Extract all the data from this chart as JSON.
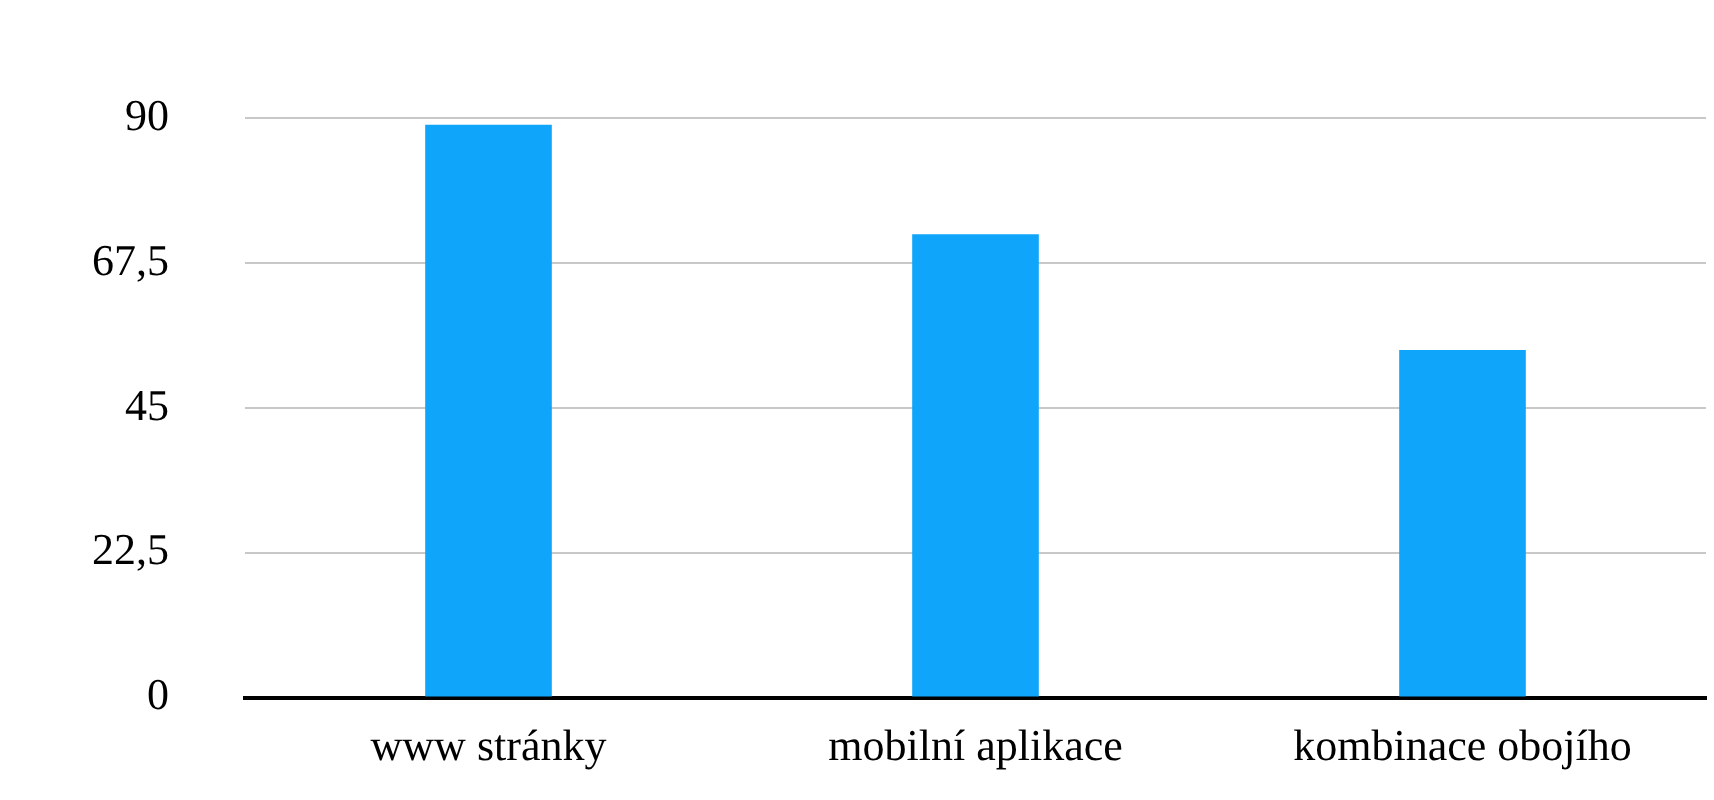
{
  "chart_data": {
    "type": "bar",
    "categories": [
      "www stránky",
      "mobilní aplikace",
      "kombinace obojího"
    ],
    "values": [
      89,
      72,
      54
    ],
    "color": "#0ea5fb",
    "ylim": [
      0,
      90
    ],
    "yticks": [
      0,
      {
        "value": 22.5,
        "label": "22,5"
      },
      45,
      {
        "value": 67.5,
        "label": "67,5"
      },
      90
    ],
    "grid": "y"
  }
}
